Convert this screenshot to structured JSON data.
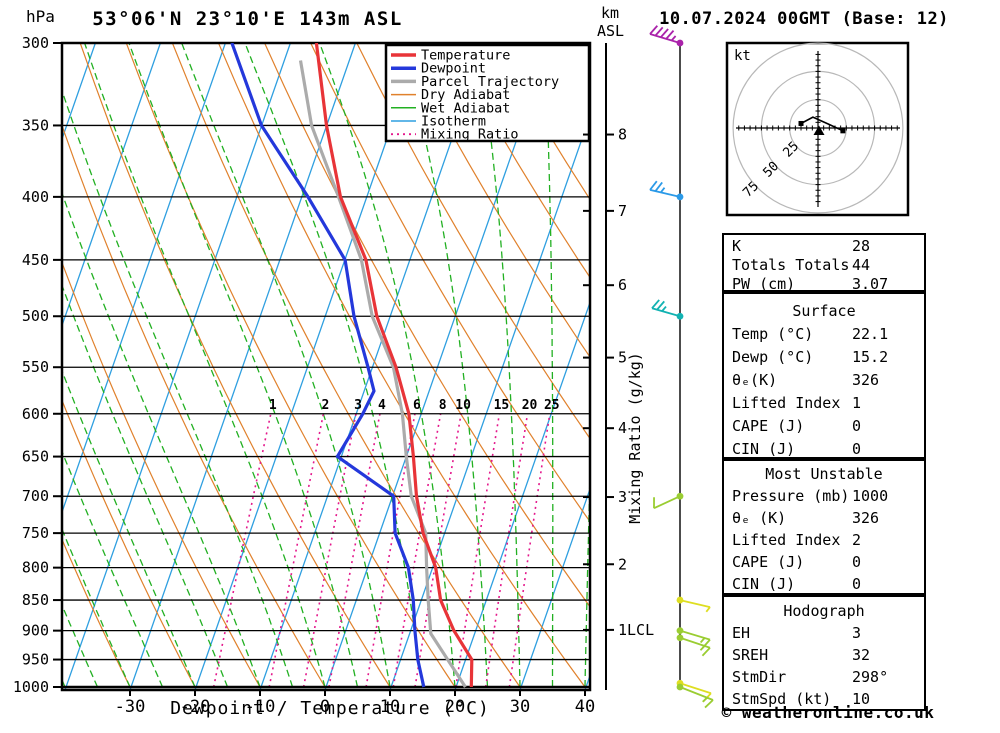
{
  "header": {
    "pressure_unit": "hPa",
    "title": "53°06'N 23°10'E 143m ASL",
    "altitude_unit": "km",
    "altitude_ref": "ASL",
    "datetime": "10.07.2024 00GMT (Base: 12)"
  },
  "footer": {
    "copyright": "© weatheronline.co.uk"
  },
  "legend": {
    "items": [
      {
        "label": "Temperature",
        "color": "#e83438",
        "width": 3.5,
        "dash": ""
      },
      {
        "label": "Dewpoint",
        "color": "#2438db",
        "width": 3.5,
        "dash": ""
      },
      {
        "label": "Parcel Trajectory",
        "color": "#ababab",
        "width": 3.5,
        "dash": ""
      },
      {
        "label": "Dry Adiabat",
        "color": "#e0812c",
        "width": 1.5,
        "dash": ""
      },
      {
        "label": "Wet Adiabat",
        "color": "#22b022",
        "width": 1.5,
        "dash": ""
      },
      {
        "label": "Isotherm",
        "color": "#2f9fe0",
        "width": 1.5,
        "dash": ""
      },
      {
        "label": "Mixing Ratio",
        "color": "#e4188c",
        "width": 1.8,
        "dash": "2,4"
      }
    ]
  },
  "axes": {
    "pressure_ticks": [
      300,
      350,
      400,
      450,
      500,
      550,
      600,
      650,
      700,
      750,
      800,
      850,
      900,
      950,
      1000
    ],
    "temp_ticks": [
      -30,
      -20,
      -10,
      0,
      10,
      20,
      30,
      40
    ],
    "xlabel": "Dewpoint / Temperature (°C)",
    "km_ticks": [
      {
        "km": 8,
        "label": "8"
      },
      {
        "km": 7,
        "label": "7"
      },
      {
        "km": 6,
        "label": "6"
      },
      {
        "km": 5,
        "label": "5"
      },
      {
        "km": 4,
        "label": "4"
      },
      {
        "km": 3,
        "label": "3"
      },
      {
        "km": 2,
        "label": "2"
      },
      {
        "km": 1,
        "label": "1LCL"
      }
    ],
    "mixing_ratio_axis_label": "Mixing Ratio (g/kg)",
    "mixing_ratio_values": [
      1,
      2,
      3,
      4,
      6,
      8,
      10,
      15,
      20,
      25
    ]
  },
  "chart_data": {
    "type": "skewt_logp",
    "pressure_range_hpa": [
      300,
      1000
    ],
    "temp_axis_range_c": [
      -40,
      40
    ],
    "isotherm_step_c": 10,
    "dry_adiabat_step_c": 10,
    "wet_adiabat_step_c": 5,
    "series": [
      {
        "name": "Temperature",
        "color": "#e83438",
        "points_p_t": [
          [
            300,
            -36
          ],
          [
            350,
            -30
          ],
          [
            400,
            -24
          ],
          [
            450,
            -16.7
          ],
          [
            500,
            -12
          ],
          [
            550,
            -6.3
          ],
          [
            600,
            -1.8
          ],
          [
            650,
            1.2
          ],
          [
            700,
            3.8
          ],
          [
            750,
            6.8
          ],
          [
            800,
            10.6
          ],
          [
            850,
            13.1
          ],
          [
            900,
            16.8
          ],
          [
            950,
            21.1
          ],
          [
            1000,
            22.5
          ]
        ]
      },
      {
        "name": "Dewpoint",
        "color": "#2438db",
        "points_p_t": [
          [
            300,
            -49
          ],
          [
            350,
            -40
          ],
          [
            400,
            -29
          ],
          [
            450,
            -19.9
          ],
          [
            500,
            -15.5
          ],
          [
            550,
            -10.6
          ],
          [
            575,
            -8.4
          ],
          [
            600,
            -8.9
          ],
          [
            650,
            -10.5
          ],
          [
            700,
            0.3
          ],
          [
            750,
            2.5
          ],
          [
            800,
            6.4
          ],
          [
            850,
            8.9
          ],
          [
            900,
            10.8
          ],
          [
            950,
            12.8
          ],
          [
            1000,
            15.2
          ]
        ]
      },
      {
        "name": "Parcel Trajectory",
        "color": "#ababab",
        "points_p_t": [
          [
            310,
            -37.5
          ],
          [
            350,
            -32.3
          ],
          [
            400,
            -24.3
          ],
          [
            450,
            -17.4
          ],
          [
            500,
            -12.7
          ],
          [
            550,
            -6.7
          ],
          [
            600,
            -2.8
          ],
          [
            650,
            0.1
          ],
          [
            700,
            3.0
          ],
          [
            750,
            7.2
          ],
          [
            800,
            9.2
          ],
          [
            850,
            11.2
          ],
          [
            905,
            13.4
          ],
          [
            950,
            17.4
          ],
          [
            1000,
            21.6
          ]
        ]
      }
    ],
    "background_colors": {
      "isotherm": "#2f9fe0",
      "dry_adiabat": "#e0812c",
      "wet_adiabat": "#22b022",
      "mixing_ratio": "#e4188c"
    }
  },
  "wind_barbs": [
    {
      "pressure": 300,
      "color": "#aa22aa",
      "stem": [
        -30,
        -9
      ],
      "full": 4,
      "half": true
    },
    {
      "pressure": 400,
      "color": "#2b9ae8",
      "stem": [
        -30,
        -7
      ],
      "full": 2,
      "half": true
    },
    {
      "pressure": 500,
      "color": "#12b2b2",
      "stem": [
        -28,
        -8
      ],
      "full": 2,
      "half": true
    },
    {
      "pressure": 700,
      "color": "#9acd32",
      "stem": [
        -26,
        12
      ],
      "full": 1,
      "half": false
    },
    {
      "pressure": 850,
      "color": "#dede21",
      "stem": [
        30,
        7
      ],
      "full": 0,
      "half": true
    },
    {
      "pressure": 900,
      "color": "#9acd32",
      "stem": [
        30,
        9
      ],
      "full": 1,
      "half": true
    },
    {
      "pressure": 912,
      "color": "#9acd32",
      "stem": [
        30,
        10
      ],
      "full": 1,
      "half": true
    },
    {
      "pressure": 993,
      "color": "#dede21",
      "stem": [
        31,
        10
      ],
      "full": 1,
      "half": false
    },
    {
      "pressure": 1000,
      "color": "#9acd32",
      "stem": [
        33,
        13
      ],
      "full": 1,
      "half": true
    }
  ],
  "hodograph": {
    "unit_label": "kt",
    "rings_kt": [
      25,
      50,
      75
    ],
    "trace_kt": [
      [
        -15,
        4
      ],
      [
        -4.5,
        9.5
      ],
      [
        9,
        3.5
      ],
      [
        22,
        -2.5
      ]
    ]
  },
  "tables": [
    {
      "title": "",
      "rows": [
        [
          "K",
          "28"
        ],
        [
          "Totals Totals",
          "44"
        ],
        [
          "PW (cm)",
          "3.07"
        ]
      ]
    },
    {
      "title": "Surface",
      "rows": [
        [
          "Temp (°C)",
          "22.1"
        ],
        [
          "Dewp (°C)",
          "15.2"
        ],
        [
          "θₑ(K)",
          "326"
        ],
        [
          "Lifted Index",
          "1"
        ],
        [
          "CAPE (J)",
          "0"
        ],
        [
          "CIN (J)",
          "0"
        ]
      ]
    },
    {
      "title": "Most Unstable",
      "rows": [
        [
          "Pressure (mb)",
          "1000"
        ],
        [
          "θₑ (K)",
          "326"
        ],
        [
          "Lifted Index",
          "2"
        ],
        [
          "CAPE (J)",
          "0"
        ],
        [
          "CIN (J)",
          "0"
        ]
      ]
    },
    {
      "title": "Hodograph",
      "rows": [
        [
          "EH",
          "3"
        ],
        [
          "SREH",
          "32"
        ],
        [
          "StmDir",
          "298°"
        ],
        [
          "StmSpd (kt)",
          "10"
        ]
      ]
    }
  ]
}
